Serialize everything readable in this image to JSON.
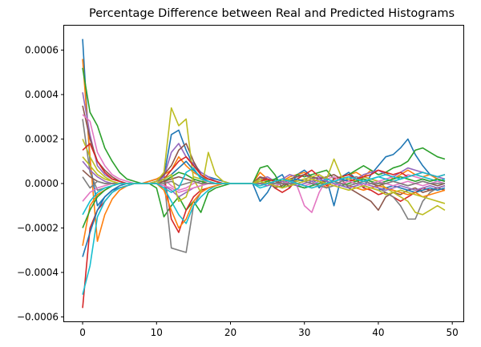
{
  "chart_data": {
    "type": "line",
    "title": "Percentage Difference between Real and Predicted Histograms",
    "xlabel": "",
    "ylabel": "",
    "xlim": [
      -2.5,
      51.5
    ],
    "ylim": [
      -0.00062,
      0.00071
    ],
    "x_ticks": [
      0,
      10,
      20,
      30,
      40,
      50
    ],
    "x_tick_labels": [
      "0",
      "10",
      "20",
      "30",
      "40",
      "50"
    ],
    "y_ticks": [
      -0.0006,
      -0.0004,
      -0.0002,
      0.0,
      0.0002,
      0.0004,
      0.0006
    ],
    "y_tick_labels": [
      "−0.0006",
      "−0.0004",
      "−0.0002",
      "0.0000",
      "0.0002",
      "0.0004",
      "0.0006"
    ],
    "grid": false,
    "legend": "none",
    "colors": [
      "#1f77b4",
      "#ff7f0e",
      "#2ca02c",
      "#d62728",
      "#9467bd",
      "#8c564b",
      "#e377c2",
      "#7f7f7f",
      "#bcbd22",
      "#17becf"
    ],
    "x": [
      0,
      1,
      2,
      3,
      4,
      5,
      6,
      7,
      8,
      9,
      10,
      11,
      12,
      13,
      14,
      15,
      16,
      17,
      18,
      19,
      20,
      21,
      22,
      23,
      24,
      25,
      26,
      27,
      28,
      29,
      30,
      31,
      32,
      33,
      34,
      35,
      36,
      37,
      38,
      39,
      40,
      41,
      42,
      43,
      44,
      45,
      46,
      47,
      48,
      49
    ],
    "series": [
      {
        "values": [
          0.00065,
          9e-05,
          -0.0001,
          -6e-05,
          -3e-05,
          -2e-05,
          -1e-05,
          0.0,
          0.0,
          1e-05,
          2e-05,
          3e-05,
          0.00022,
          0.00024,
          0.00015,
          8e-05,
          5e-05,
          3e-05,
          2e-05,
          1e-05,
          0.0,
          0.0,
          0.0,
          0.0,
          -8e-05,
          -4e-05,
          2e-05,
          4e-05,
          -2e-05,
          4e-05,
          6e-05,
          3e-05,
          -2e-05,
          2e-05,
          -0.0001,
          3e-05,
          5e-05,
          2e-05,
          -2e-05,
          4e-05,
          8e-05,
          0.00012,
          0.00013,
          0.00016,
          0.0002,
          0.00013,
          8e-05,
          4e-05,
          2e-05,
          1e-05
        ]
      },
      {
        "values": [
          0.00056,
          0.00012,
          -0.00026,
          -0.00014,
          -7e-05,
          -3e-05,
          -1e-05,
          0.0,
          0.0,
          1e-05,
          2e-05,
          4e-05,
          6e-05,
          0.00012,
          8e-05,
          5e-05,
          3e-05,
          2e-05,
          1e-05,
          0.0,
          0.0,
          0.0,
          0.0,
          0.0,
          5e-05,
          2e-05,
          -2e-05,
          1e-05,
          3e-05,
          4e-05,
          5e-05,
          2e-05,
          1e-05,
          -2e-05,
          2e-05,
          3e-05,
          4e-05,
          5e-05,
          3e-05,
          6e-05,
          4e-05,
          5e-05,
          2e-05,
          4e-05,
          6e-05,
          4e-05,
          3e-05,
          4e-05,
          2e-05,
          1e-05
        ]
      },
      {
        "values": [
          0.00052,
          0.00032,
          0.00026,
          0.00016,
          0.0001,
          5e-05,
          2e-05,
          1e-05,
          0.0,
          0.0,
          -2e-05,
          -0.00015,
          -0.0001,
          -6e-05,
          -0.00012,
          -8e-05,
          -0.00013,
          -4e-05,
          -2e-05,
          -1e-05,
          0.0,
          0.0,
          0.0,
          0.0,
          7e-05,
          8e-05,
          4e-05,
          -2e-05,
          1e-05,
          4e-05,
          3e-05,
          4e-05,
          5e-05,
          6e-05,
          2e-05,
          3e-05,
          4e-05,
          6e-05,
          8e-05,
          6e-05,
          4e-05,
          5e-05,
          7e-05,
          8e-05,
          0.0001,
          0.00015,
          0.00016,
          0.00014,
          0.00012,
          0.00011
        ]
      },
      {
        "values": [
          -0.00056,
          -0.0002,
          -0.00012,
          -8e-05,
          -4e-05,
          -2e-05,
          -1e-05,
          0.0,
          0.0,
          0.0,
          1e-05,
          4e-05,
          -0.00016,
          -0.00022,
          -0.00012,
          -6e-05,
          -3e-05,
          -2e-05,
          -1e-05,
          0.0,
          0.0,
          0.0,
          0.0,
          0.0,
          3e-05,
          1e-05,
          -2e-05,
          -4e-05,
          -2e-05,
          2e-05,
          4e-05,
          6e-05,
          3e-05,
          -1e-05,
          2e-05,
          3e-05,
          4e-05,
          2e-05,
          -2e-05,
          -3e-05,
          -5e-05,
          -4e-05,
          -6e-05,
          -8e-05,
          -6e-05,
          -4e-05,
          -2e-05,
          -3e-05,
          -2e-05,
          -1e-05
        ]
      },
      {
        "values": [
          0.00041,
          0.00022,
          8e-05,
          4e-05,
          2e-05,
          1e-05,
          0.0,
          0.0,
          0.0,
          0.0,
          1e-05,
          3e-05,
          0.00014,
          0.00018,
          0.00012,
          9e-05,
          5e-05,
          3e-05,
          1e-05,
          0.0,
          0.0,
          0.0,
          0.0,
          0.0,
          2e-05,
          3e-05,
          1e-05,
          2e-05,
          4e-05,
          3e-05,
          4e-05,
          2e-05,
          3e-05,
          2e-05,
          1e-05,
          2e-05,
          3e-05,
          2e-05,
          4e-05,
          5e-05,
          6e-05,
          4e-05,
          3e-05,
          5e-05,
          7e-05,
          6e-05,
          5e-05,
          4e-05,
          3e-05,
          2e-05
        ]
      },
      {
        "values": [
          0.00035,
          0.0002,
          0.0001,
          6e-05,
          3e-05,
          1e-05,
          0.0,
          0.0,
          0.0,
          0.0,
          1e-05,
          4e-05,
          8e-05,
          0.00015,
          0.00018,
          0.0001,
          4e-05,
          2e-05,
          1e-05,
          0.0,
          0.0,
          0.0,
          0.0,
          0.0,
          3e-05,
          2e-05,
          -2e-05,
          -1e-05,
          2e-05,
          3e-05,
          4e-05,
          3e-05,
          2e-05,
          3e-05,
          4e-05,
          2e-05,
          -2e-05,
          -4e-05,
          -6e-05,
          -8e-05,
          -0.00012,
          -6e-05,
          -4e-05,
          -5e-05,
          -3e-05,
          -2e-05,
          -4e-05,
          -3e-05,
          -2e-05,
          -3e-05
        ]
      },
      {
        "values": [
          0.00031,
          0.00028,
          0.00014,
          8e-05,
          4e-05,
          2e-05,
          1e-05,
          0.0,
          0.0,
          0.0,
          1e-05,
          2e-05,
          -1e-05,
          -3e-05,
          -2e-05,
          0.0,
          1e-05,
          1e-05,
          0.0,
          0.0,
          0.0,
          0.0,
          0.0,
          0.0,
          1e-05,
          0.0,
          -1e-05,
          0.0,
          1e-05,
          -1e-05,
          -0.0001,
          -0.00013,
          -4e-05,
          2e-05,
          3e-05,
          1e-05,
          2e-05,
          1e-05,
          3e-05,
          2e-05,
          1e-05,
          2e-05,
          3e-05,
          2e-05,
          4e-05,
          3e-05,
          2e-05,
          1e-05,
          2e-05,
          1e-05
        ]
      },
      {
        "values": [
          0.00029,
          5e-05,
          -3e-05,
          -2e-05,
          -1e-05,
          0.0,
          0.0,
          0.0,
          0.0,
          0.0,
          1e-05,
          2e-05,
          -0.00029,
          -0.0003,
          -0.00031,
          -0.0001,
          -4e-05,
          -2e-05,
          -1e-05,
          0.0,
          0.0,
          0.0,
          0.0,
          0.0,
          2e-05,
          1e-05,
          -1e-05,
          -2e-05,
          -1e-05,
          1e-05,
          2e-05,
          1e-05,
          -1e-05,
          -2e-05,
          -1e-05,
          1e-05,
          2e-05,
          3e-05,
          2e-05,
          1e-05,
          -2e-05,
          -4e-05,
          -6e-05,
          -0.0001,
          -0.00016,
          -0.00016,
          -8e-05,
          -4e-05,
          -2e-05,
          -1e-05
        ]
      },
      {
        "values": [
          0.0002,
          0.00012,
          6e-05,
          3e-05,
          1e-05,
          0.0,
          0.0,
          0.0,
          0.0,
          0.0,
          1e-05,
          5e-05,
          0.00034,
          0.00026,
          0.00029,
          2e-05,
          -4e-05,
          0.00014,
          4e-05,
          1e-05,
          0.0,
          0.0,
          0.0,
          0.0,
          2e-05,
          1e-05,
          0.0,
          1e-05,
          2e-05,
          1e-05,
          2e-05,
          3e-05,
          4e-05,
          2e-05,
          0.00011,
          3e-05,
          2e-05,
          1e-05,
          3e-05,
          2e-05,
          1e-05,
          -2e-05,
          -4e-05,
          -6e-05,
          -8e-05,
          -0.00013,
          -0.00014,
          -0.00012,
          -0.0001,
          -0.00012
        ]
      },
      {
        "values": [
          -0.0005,
          -0.00037,
          -0.00015,
          -8e-05,
          -4e-05,
          -2e-05,
          -1e-05,
          0.0,
          0.0,
          0.0,
          0.0,
          -2e-05,
          -8e-05,
          -0.00014,
          -0.00018,
          -0.0001,
          -6e-05,
          -3e-05,
          -1e-05,
          0.0,
          0.0,
          0.0,
          0.0,
          0.0,
          -2e-05,
          -1e-05,
          1e-05,
          2e-05,
          1e-05,
          -1e-05,
          -2e-05,
          -1e-05,
          1e-05,
          2e-05,
          1e-05,
          -1e-05,
          -2e-05,
          -1e-05,
          1e-05,
          2e-05,
          3e-05,
          2e-05,
          1e-05,
          2e-05,
          3e-05,
          4e-05,
          3e-05,
          2e-05,
          1e-05,
          2e-05
        ]
      },
      {
        "values": [
          -0.00033,
          -0.00022,
          -0.00012,
          -6e-05,
          -3e-05,
          -1e-05,
          0.0,
          0.0,
          0.0,
          0.0,
          0.0,
          2e-05,
          4e-05,
          7e-05,
          0.0001,
          6e-05,
          3e-05,
          1e-05,
          0.0,
          0.0,
          0.0,
          0.0,
          0.0,
          0.0,
          1e-05,
          0.0,
          -1e-05,
          0.0,
          1e-05,
          2e-05,
          1e-05,
          0.0,
          -1e-05,
          0.0,
          1e-05,
          2e-05,
          1e-05,
          0.0,
          -1e-05,
          -2e-05,
          -3e-05,
          -2e-05,
          -1e-05,
          -2e-05,
          -3e-05,
          -4e-05,
          -3e-05,
          -2e-05,
          -3e-05,
          -2e-05
        ]
      },
      {
        "values": [
          -0.00028,
          -0.0001,
          -5e-05,
          -3e-05,
          -1e-05,
          0.0,
          0.0,
          0.0,
          0.0,
          0.0,
          0.0,
          -3e-05,
          -0.00012,
          -0.0002,
          -0.00016,
          -8e-05,
          -4e-05,
          -2e-05,
          -1e-05,
          0.0,
          0.0,
          0.0,
          0.0,
          0.0,
          -1e-05,
          0.0,
          1e-05,
          2e-05,
          1e-05,
          0.0,
          -1e-05,
          -2e-05,
          -1e-05,
          0.0,
          1e-05,
          0.0,
          -1e-05,
          -2e-05,
          -3e-05,
          -2e-05,
          -1e-05,
          -2e-05,
          -3e-05,
          -4e-05,
          -5e-05,
          -4e-05,
          -6e-05,
          -5e-05,
          -4e-05,
          -3e-05
        ]
      },
      {
        "values": [
          -0.0002,
          -0.00012,
          -6e-05,
          -3e-05,
          -1e-05,
          0.0,
          0.0,
          0.0,
          0.0,
          0.0,
          0.0,
          1e-05,
          3e-05,
          5e-05,
          4e-05,
          2e-05,
          1e-05,
          0.0,
          0.0,
          0.0,
          0.0,
          0.0,
          0.0,
          0.0,
          0.0,
          1e-05,
          2e-05,
          1e-05,
          0.0,
          -1e-05,
          -2e-05,
          -1e-05,
          0.0,
          1e-05,
          0.0,
          -1e-05,
          0.0,
          1e-05,
          2e-05,
          1e-05,
          0.0,
          1e-05,
          2e-05,
          3e-05,
          2e-05,
          1e-05,
          2e-05,
          1e-05,
          2e-05,
          1e-05
        ]
      },
      {
        "values": [
          0.00015,
          0.00018,
          0.0001,
          5e-05,
          2e-05,
          1e-05,
          0.0,
          0.0,
          0.0,
          0.0,
          0.0,
          2e-05,
          6e-05,
          0.0001,
          0.00012,
          8e-05,
          4e-05,
          2e-05,
          1e-05,
          0.0,
          0.0,
          0.0,
          0.0,
          0.0,
          1e-05,
          2e-05,
          1e-05,
          0.0,
          -1e-05,
          0.0,
          1e-05,
          2e-05,
          1e-05,
          0.0,
          -1e-05,
          0.0,
          1e-05,
          2e-05,
          3e-05,
          4e-05,
          6e-05,
          5e-05,
          4e-05,
          5e-05,
          3e-05,
          4e-05,
          5e-05,
          4e-05,
          3e-05,
          4e-05
        ]
      },
      {
        "values": [
          0.0001,
          6e-05,
          3e-05,
          1e-05,
          0.0,
          0.0,
          0.0,
          0.0,
          0.0,
          0.0,
          0.0,
          -1e-05,
          -3e-05,
          -6e-05,
          -4e-05,
          -2e-05,
          -1e-05,
          0.0,
          0.0,
          0.0,
          0.0,
          0.0,
          0.0,
          0.0,
          0.0,
          -1e-05,
          0.0,
          1e-05,
          0.0,
          -1e-05,
          0.0,
          1e-05,
          2e-05,
          1e-05,
          0.0,
          -1e-05,
          -2e-05,
          -1e-05,
          0.0,
          -1e-05,
          -2e-05,
          -3e-05,
          -2e-05,
          -1e-05,
          -2e-05,
          -3e-05,
          -2e-05,
          -1e-05,
          -2e-05,
          -1e-05
        ]
      },
      {
        "values": [
          6e-05,
          3e-05,
          1e-05,
          0.0,
          0.0,
          0.0,
          0.0,
          0.0,
          0.0,
          0.0,
          0.0,
          1e-05,
          2e-05,
          3e-05,
          2e-05,
          1e-05,
          0.0,
          0.0,
          0.0,
          0.0,
          0.0,
          0.0,
          0.0,
          0.0,
          0.0,
          0.0,
          1e-05,
          0.0,
          -1e-05,
          0.0,
          1e-05,
          0.0,
          -1e-05,
          0.0,
          1e-05,
          0.0,
          -1e-05,
          0.0,
          1e-05,
          0.0,
          -1e-05,
          0.0,
          1e-05,
          0.0,
          -1e-05,
          0.0,
          1e-05,
          0.0,
          -1e-05,
          0.0
        ]
      },
      {
        "values": [
          -8e-05,
          -4e-05,
          -2e-05,
          -1e-05,
          0.0,
          0.0,
          0.0,
          0.0,
          0.0,
          0.0,
          0.0,
          -1e-05,
          -2e-05,
          -4e-05,
          -3e-05,
          -2e-05,
          -1e-05,
          0.0,
          0.0,
          0.0,
          0.0,
          0.0,
          0.0,
          0.0,
          0.0,
          0.0,
          -1e-05,
          0.0,
          1e-05,
          0.0,
          -1e-05,
          0.0,
          1e-05,
          0.0,
          -1e-05,
          0.0,
          1e-05,
          0.0,
          -1e-05,
          0.0,
          1e-05,
          0.0,
          -1e-05,
          0.0,
          1e-05,
          0.0,
          -1e-05,
          0.0,
          1e-05,
          0.0
        ]
      },
      {
        "values": [
          3e-05,
          -2e-05,
          1e-05,
          0.0,
          0.0,
          0.0,
          0.0,
          0.0,
          0.0,
          0.0,
          0.0,
          0.0,
          1e-05,
          -1e-05,
          0.0,
          1e-05,
          0.0,
          0.0,
          0.0,
          0.0,
          0.0,
          0.0,
          0.0,
          0.0,
          0.0,
          0.0,
          0.0,
          0.0,
          0.0,
          0.0,
          1e-05,
          0.0,
          -1e-05,
          0.0,
          1e-05,
          0.0,
          -1e-05,
          0.0,
          1e-05,
          0.0,
          0.0,
          0.0,
          1e-05,
          0.0,
          -1e-05,
          0.0,
          1e-05,
          0.0,
          0.0,
          0.0
        ]
      },
      {
        "values": [
          0.00012,
          8e-05,
          4e-05,
          2e-05,
          1e-05,
          0.0,
          0.0,
          0.0,
          0.0,
          0.0,
          0.0,
          2e-05,
          4e-05,
          -8e-05,
          -6e-05,
          3e-05,
          2e-05,
          1e-05,
          0.0,
          0.0,
          0.0,
          0.0,
          0.0,
          0.0,
          1e-05,
          0.0,
          -1e-05,
          -2e-05,
          -1e-05,
          0.0,
          1e-05,
          2e-05,
          1e-05,
          0.0,
          -1e-05,
          -2e-05,
          -3e-05,
          -2e-05,
          -1e-05,
          -2e-05,
          -3e-05,
          -5e-05,
          -4e-05,
          -3e-05,
          -4e-05,
          -5e-05,
          -6e-05,
          -7e-05,
          -8e-05,
          -9e-05
        ]
      },
      {
        "values": [
          -0.00014,
          -8e-05,
          -4e-05,
          -2e-05,
          -1e-05,
          0.0,
          0.0,
          0.0,
          0.0,
          0.0,
          0.0,
          -2e-05,
          -4e-05,
          -2e-05,
          5e-05,
          7e-05,
          2e-05,
          1e-05,
          0.0,
          0.0,
          0.0,
          0.0,
          0.0,
          0.0,
          -1e-05,
          0.0,
          1e-05,
          2e-05,
          1e-05,
          0.0,
          -1e-05,
          -2e-05,
          -1e-05,
          0.0,
          1e-05,
          2e-05,
          3e-05,
          2e-05,
          1e-05,
          2e-05,
          3e-05,
          4e-05,
          3e-05,
          2e-05,
          3e-05,
          4e-05,
          5e-05,
          4e-05,
          3e-05,
          4e-05
        ]
      }
    ]
  }
}
